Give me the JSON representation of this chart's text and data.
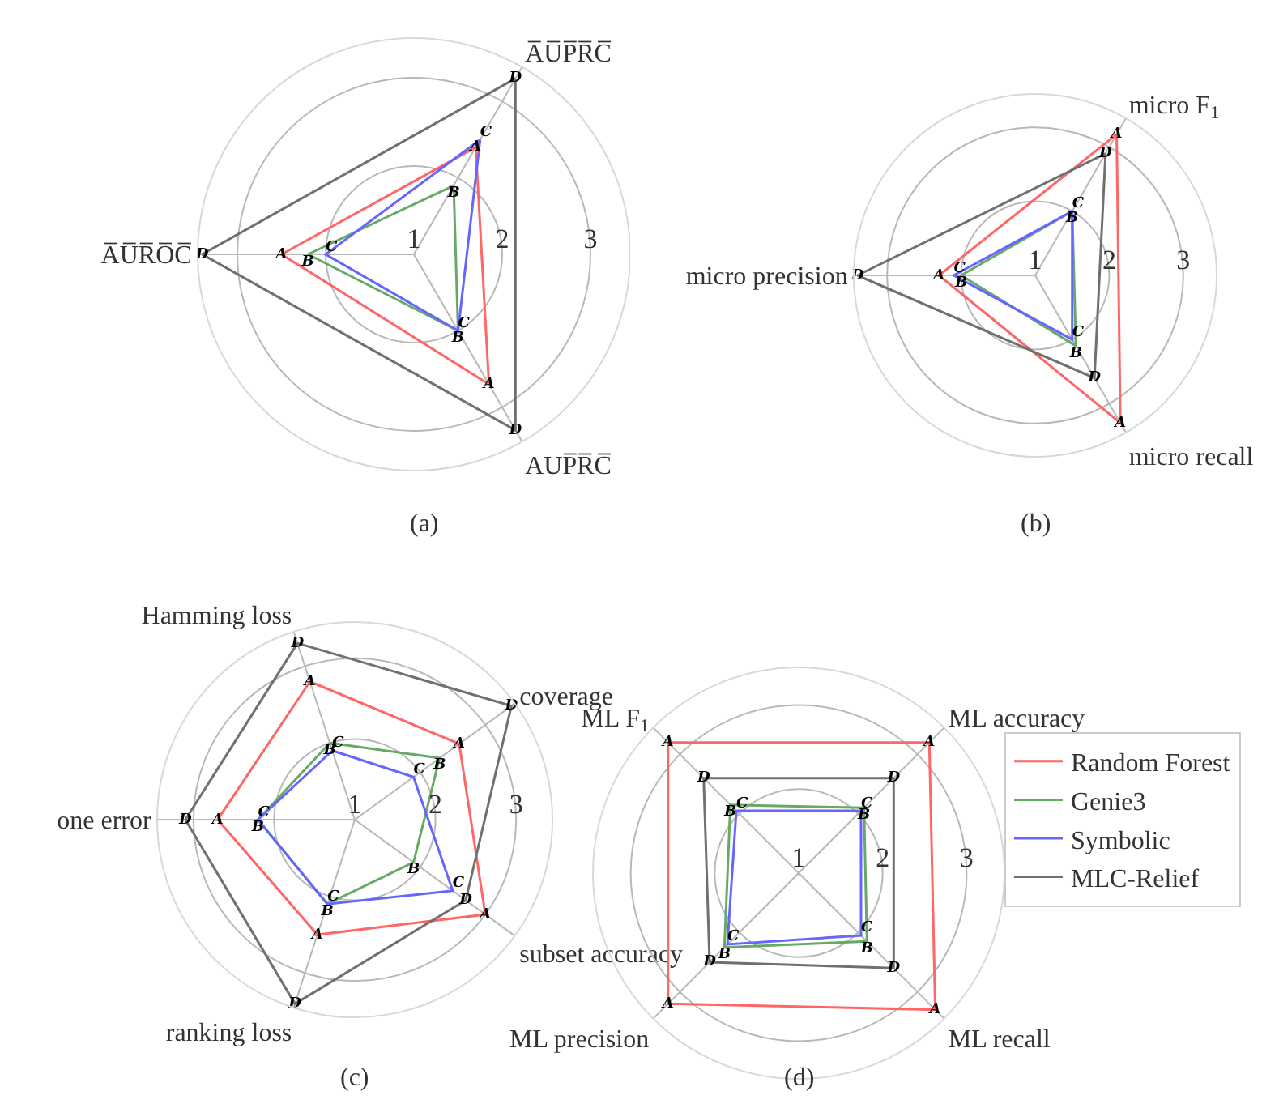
{
  "chart_data": [
    {
      "type": "radar",
      "categories": [
        "A̅U̅P̅R̅C̅",
        "AUP̅R̅C̅",
        "A̅U̅R̅O̅C̅"
      ],
      "ylim": [
        1,
        3.45
      ],
      "yticks": [
        1,
        2,
        3
      ],
      "grid": true,
      "annotations": [
        "(a)"
      ],
      "series": [
        {
          "color": "#ff6666",
          "values": [
            2.4,
            2.7,
            2.5
          ],
          "value_labels": [
            "A",
            "A",
            "A"
          ]
        },
        {
          "color": "#66aa66",
          "values": [
            1.9,
            2.0,
            2.2
          ],
          "value_labels": [
            "B",
            "B",
            "B"
          ]
        },
        {
          "color": "#6666ff",
          "values": [
            2.5,
            2.0,
            2.0
          ],
          "value_labels": [
            "C",
            "C",
            "C"
          ]
        },
        {
          "color": "#707070",
          "values": [
            3.3,
            3.3,
            3.4
          ],
          "value_labels": [
            "D",
            "D",
            "D"
          ]
        }
      ]
    },
    {
      "type": "radar",
      "categories": [
        "micro F$_{1}$",
        "micro recall",
        "micro precision"
      ],
      "ylim": [
        1,
        3.45
      ],
      "yticks": [
        1,
        2,
        3
      ],
      "grid": true,
      "annotations": [
        "(b)"
      ],
      "series": [
        {
          "color": "#ff6666",
          "values": [
            3.2,
            3.3,
            2.3
          ],
          "value_labels": [
            "A",
            "A",
            "A"
          ]
        },
        {
          "color": "#66aa66",
          "values": [
            2.0,
            2.1,
            2.0
          ],
          "value_labels": [
            "B",
            "B",
            "B"
          ]
        },
        {
          "color": "#6666ff",
          "values": [
            2.0,
            2.0,
            2.1
          ],
          "value_labels": [
            "C",
            "C",
            "C"
          ]
        },
        {
          "color": "#707070",
          "values": [
            2.9,
            2.6,
            3.4
          ],
          "value_labels": [
            "D",
            "D",
            "D"
          ]
        }
      ]
    },
    {
      "type": "radar",
      "categories": [
        "Hamming loss",
        "coverage",
        "subset accuracy",
        "ranking loss",
        "one error"
      ],
      "ylim": [
        1,
        3.45
      ],
      "yticks": [
        1,
        2,
        3
      ],
      "grid": true,
      "annotations": [
        "(c)"
      ],
      "series": [
        {
          "color": "#ff6666",
          "values": [
            2.8,
            2.6,
            3.0,
            2.5,
            2.7
          ],
          "value_labels": [
            "A",
            "A",
            "A",
            "A",
            "A"
          ]
        },
        {
          "color": "#66aa66",
          "values": [
            2.0,
            2.3,
            1.9,
            2.1,
            2.2
          ],
          "value_labels": [
            "B",
            "B",
            "B",
            "B",
            "B"
          ]
        },
        {
          "color": "#6666ff",
          "values": [
            1.9,
            1.9,
            2.5,
            2.1,
            2.2
          ],
          "value_labels": [
            "C",
            "C",
            "C",
            "C",
            "C"
          ]
        },
        {
          "color": "#707070",
          "values": [
            3.3,
            3.4,
            2.7,
            3.4,
            3.1
          ],
          "value_labels": [
            "D",
            "D",
            "D",
            "D",
            "D"
          ]
        }
      ]
    },
    {
      "type": "radar",
      "categories": [
        "ML accuracy",
        "ML recall",
        "ML precision",
        "ML F$_{1}$"
      ],
      "ylim": [
        1,
        3.45
      ],
      "yticks": [
        1,
        2,
        3
      ],
      "grid": true,
      "legend": "right",
      "annotations": [
        "(d)"
      ],
      "series": [
        {
          "name": "Random Forest",
          "color": "#ff6666",
          "values": [
            3.2,
            3.3,
            3.2,
            3.2
          ],
          "value_labels": [
            "A",
            "A",
            "A",
            "A"
          ]
        },
        {
          "name": "Genie3",
          "color": "#66aa66",
          "values": [
            2.1,
            2.15,
            2.25,
            2.15
          ],
          "value_labels": [
            "B",
            "B",
            "B",
            "B"
          ]
        },
        {
          "name": "Symbolic",
          "color": "#6666ff",
          "values": [
            2.05,
            2.05,
            2.2,
            2.05
          ],
          "value_labels": [
            "C",
            "C",
            "C",
            "C"
          ]
        },
        {
          "name": "MLC-Relief",
          "color": "#707070",
          "values": [
            2.6,
            2.6,
            2.5,
            2.6
          ],
          "value_labels": [
            "D",
            "D",
            "D",
            "D"
          ]
        }
      ]
    }
  ]
}
